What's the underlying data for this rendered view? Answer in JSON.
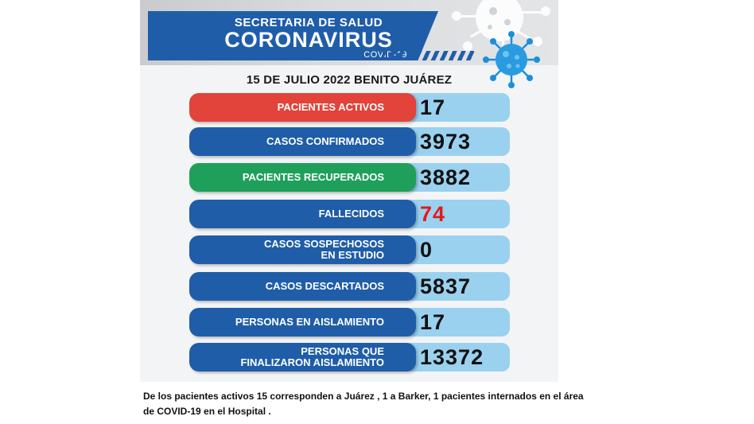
{
  "header": {
    "line1": "SECRETARIA DE SALUD",
    "line2": "CORONAVIRUS",
    "line3": "COVID-19"
  },
  "date_line": "15 DE JULIO 2022 BENITO JUÁREZ",
  "colors": {
    "blue": "#1f5da8",
    "red": "#e2433a",
    "green": "#1fa05a",
    "light_blue": "#9ad1ef",
    "alert_red": "#e01b1b"
  },
  "stats": [
    {
      "label_lines": [
        "PACIENTES ACTIVOS"
      ],
      "value": "17",
      "pill_color": "#e2433a"
    },
    {
      "label_lines": [
        "CASOS CONFIRMADOS"
      ],
      "value": "3973",
      "pill_color": "#1f5da8"
    },
    {
      "label_lines": [
        "PACIENTES RECUPERADOS"
      ],
      "value": "3882",
      "pill_color": "#1fa05a"
    },
    {
      "label_lines": [
        "FALLECIDOS"
      ],
      "value": "74",
      "pill_color": "#1f5da8",
      "value_color": "#e01b1b"
    },
    {
      "label_lines": [
        "CASOS SOSPECHOSOS",
        "EN ESTUDIO"
      ],
      "value": "0",
      "pill_color": "#1f5da8"
    },
    {
      "label_lines": [
        "CASOS DESCARTADOS"
      ],
      "value": "5837",
      "pill_color": "#1f5da8"
    },
    {
      "label_lines": [
        "PERSONAS EN AISLAMIENTO"
      ],
      "value": "17",
      "pill_color": "#1f5da8"
    },
    {
      "label_lines": [
        "PERSONAS QUE",
        "FINALIZARON AISLAMIENTO"
      ],
      "value": "13372",
      "pill_color": "#1f5da8"
    }
  ],
  "note": {
    "line1": "De los pacientes activos 15 corresponden a Juárez , 1 a Barker, 1 pacientes internados en el área",
    "line2": "de COVID-19  en el Hospital ."
  },
  "icons": [
    "virus-watermark-icon",
    "virus-icon"
  ]
}
